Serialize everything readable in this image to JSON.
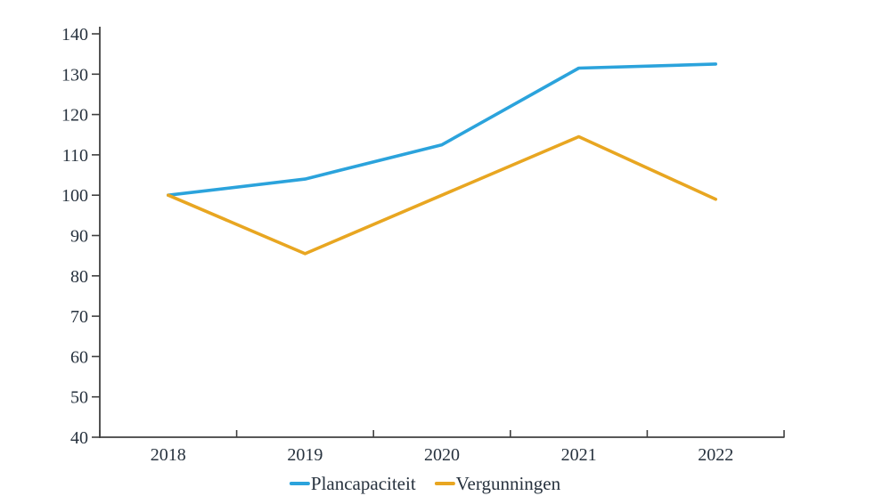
{
  "chart_data": {
    "type": "line",
    "title": "",
    "xlabel": "",
    "ylabel": "",
    "categories": [
      "2018",
      "2019",
      "2020",
      "2021",
      "2022"
    ],
    "series": [
      {
        "name": "Plancapaciteit",
        "color": "#2BA3DC",
        "values": [
          100,
          104,
          112.5,
          131.5,
          132.5
        ]
      },
      {
        "name": "Vergunningen",
        "color": "#E8A621",
        "values": [
          100,
          85.5,
          100,
          114.5,
          99
        ]
      }
    ],
    "ylim": [
      40,
      140
    ],
    "ytick_step": 10,
    "grid": false,
    "legend_position": "bottom",
    "axis_color": "#404040",
    "text_color": "#27323e"
  }
}
